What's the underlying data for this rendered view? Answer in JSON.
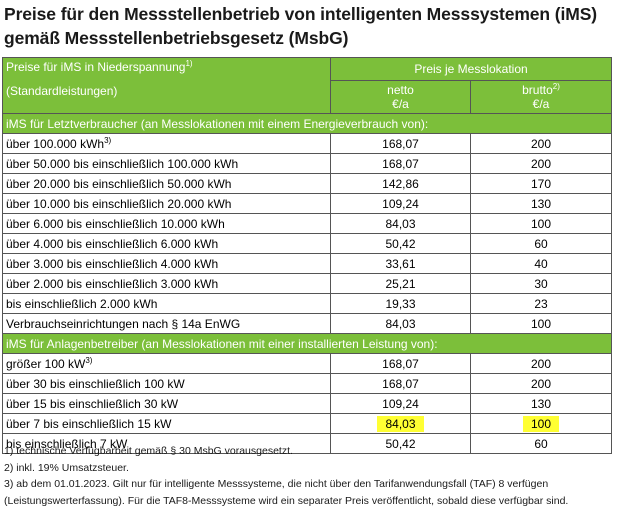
{
  "title": "Preise für den Messstellenbetrieb von intelligenten Messsystemen (iMS) gemäß Messstellenbetriebsgesetz (MsbG)",
  "header": {
    "left_line1": "Preise für iMS in Niederspannung",
    "left_line1_sup": "1)",
    "left_line2": "(Standardleistungen)",
    "right_title": "Preis je Messlokation",
    "netto_label": "netto",
    "netto_unit": "€/a",
    "brutto_label": "brutto",
    "brutto_sup": "2)",
    "brutto_unit": "€/a"
  },
  "section1": {
    "title": "iMS für Letztverbraucher (an Messlokationen mit einem Energieverbrauch von):",
    "rows": [
      {
        "label": "über 100.000 kWh",
        "sup": "3)",
        "netto": "168,07",
        "brutto": "200"
      },
      {
        "label": "über 50.000 bis einschließlich 100.000 kWh",
        "sup": "",
        "netto": "168,07",
        "brutto": "200"
      },
      {
        "label": "über 20.000 bis einschließlich 50.000 kWh",
        "sup": "",
        "netto": "142,86",
        "brutto": "170"
      },
      {
        "label": "über 10.000 bis einschließlich 20.000 kWh",
        "sup": "",
        "netto": "109,24",
        "brutto": "130"
      },
      {
        "label": "über 6.000 bis einschließlich 10.000 kWh",
        "sup": "",
        "netto": "84,03",
        "brutto": "100"
      },
      {
        "label": "über 4.000 bis einschließlich 6.000 kWh",
        "sup": "",
        "netto": "50,42",
        "brutto": "60"
      },
      {
        "label": "über 3.000 bis einschließlich 4.000 kWh",
        "sup": "",
        "netto": "33,61",
        "brutto": "40"
      },
      {
        "label": "über 2.000 bis einschließlich 3.000 kWh",
        "sup": "",
        "netto": "25,21",
        "brutto": "30"
      },
      {
        "label": "bis einschließlich 2.000 kWh",
        "sup": "",
        "netto": "19,33",
        "brutto": "23"
      },
      {
        "label": "Verbrauchseinrichtungen nach § 14a EnWG",
        "sup": "",
        "netto": "84,03",
        "brutto": "100"
      }
    ]
  },
  "section2": {
    "title": "iMS für Anlagenbetreiber (an Messlokationen mit einer installierten Leistung von):",
    "rows": [
      {
        "label": "größer 100 kW",
        "sup": "3)",
        "netto": "168,07",
        "brutto": "200",
        "highlight": false
      },
      {
        "label": "über 30 bis einschließlich 100 kW",
        "sup": "",
        "netto": "168,07",
        "brutto": "200",
        "highlight": false
      },
      {
        "label": "über 15 bis einschließlich 30 kW",
        "sup": "",
        "netto": "109,24",
        "brutto": "130",
        "highlight": false
      },
      {
        "label": "über 7 bis einschließlich 15 kW",
        "sup": "",
        "netto": "84,03",
        "brutto": "100",
        "highlight": true
      },
      {
        "label": "bis einschließlich 7 kW",
        "sup": "",
        "netto": "50,42",
        "brutto": "60",
        "highlight": false
      }
    ]
  },
  "notes": [
    "1) technische Verfügbarbeit gemäß § 30 MsbG vorausgesetzt.",
    "2) inkl. 19% Umsatzsteuer.",
    "3) ab dem 01.01.2023. Gilt nur für intelligente Messsysteme, die nicht über den Tarifanwendungsfall (TAF) 8 verfügen",
    "(Leistungswerterfassung). Für die TAF8-Messsysteme wird ein separater Preis veröffentlicht, sobald diese verfügbar sind."
  ],
  "colors": {
    "header_green": "#7cbf3a",
    "highlight": "#ffff33"
  }
}
